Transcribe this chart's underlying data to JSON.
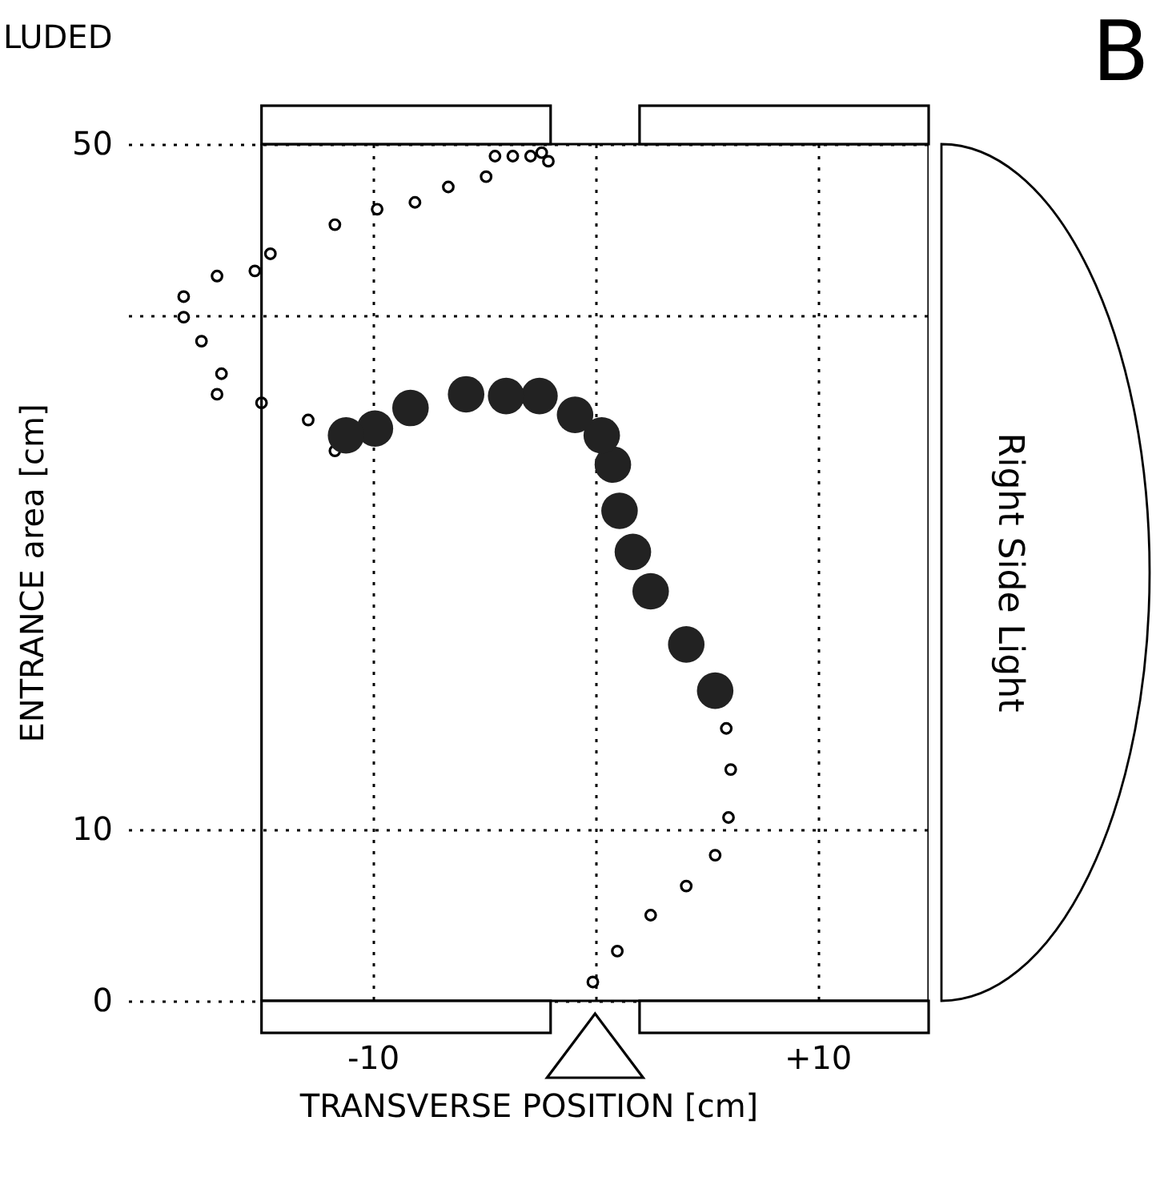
{
  "chart_data": {
    "type": "scatter",
    "xlabel": "TRANSVERSE POSITION [cm]",
    "ylabel": "ENTRANCE area     [cm]",
    "annotations": [
      "LUDED",
      "B",
      "Right Side Light"
    ],
    "xlim": [
      -21,
      15
    ],
    "ylim": [
      0,
      50
    ],
    "xticks": [
      {
        "value": -10,
        "label": "-10"
      },
      {
        "value": 0,
        "label": null
      },
      {
        "value": 10,
        "label": "+10"
      }
    ],
    "yticks": [
      0,
      10,
      {
        "value": 40,
        "label": null
      },
      50
    ],
    "grid": true,
    "marker": "circle",
    "ref_lines": [
      {
        "axis": "x",
        "value": -15
      },
      {
        "axis": "x",
        "value": 15
      }
    ],
    "series": [
      {
        "type": "scatter",
        "color": "#000000",
        "x": [
          -0.1,
          1.0,
          2.5,
          4.1,
          5.4,
          6.0,
          6.1,
          5.9,
          -11.7,
          -12.9,
          -15.0,
          -16.8,
          -17.0,
          -17.7,
          -18.5,
          -18.5,
          -17.0,
          -15.3,
          -14.6,
          -11.7,
          -9.8,
          -8.1,
          -6.6,
          -4.9,
          -4.5,
          -3.7,
          -2.9,
          -2.4,
          -2.1
        ],
        "values": [
          1.1,
          2.9,
          5.0,
          6.7,
          8.5,
          10.7,
          13.5,
          15.9,
          32.1,
          33.9,
          34.9,
          36.6,
          35.4,
          38.5,
          39.9,
          41.1,
          42.3,
          42.6,
          43.6,
          45.3,
          46.2,
          46.6,
          47.5,
          48.1,
          49.3,
          49.3,
          49.3,
          49.5,
          49.0
        ]
      },
      {
        "type": "bubble",
        "color": "#222222",
        "x": [
          5.4,
          4.1,
          2.5,
          1.7,
          1.1,
          0.8,
          0.3,
          -0.9,
          -2.5,
          -4.0,
          -5.8,
          -8.3,
          -9.9,
          -11.2
        ],
        "values": [
          18.1,
          20.8,
          23.9,
          26.2,
          28.6,
          31.3,
          33.0,
          34.2,
          35.3,
          35.3,
          35.4,
          34.6,
          33.4,
          33.0
        ],
        "sizes": [
          1,
          1,
          1,
          1,
          1,
          1,
          1,
          1,
          1,
          1,
          1,
          1,
          1,
          1
        ]
      }
    ]
  }
}
